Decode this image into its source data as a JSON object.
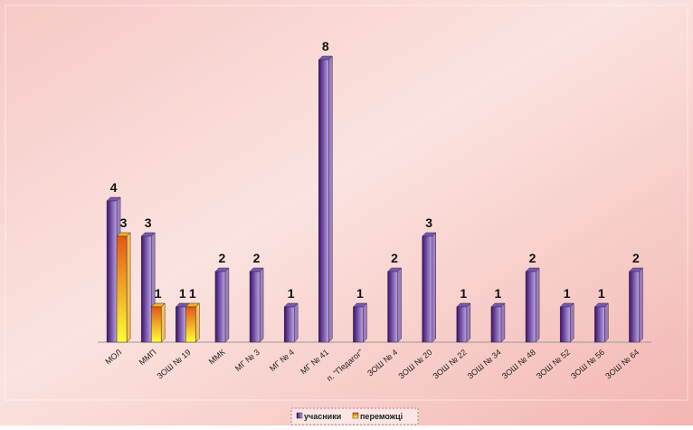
{
  "chart_data": {
    "type": "bar",
    "categories": [
      "МОЛ",
      "ММП",
      "ЗОШ № 19",
      "ММК",
      "МГ № 3",
      "МГ № 4",
      "МГ № 41",
      "п. \"Педагог\"",
      "ЗОШ № 4",
      "ЗОШ № 20",
      "ЗОШ № 22",
      "ЗОШ № 34",
      "ЗОШ № 48",
      "ЗОШ № 52",
      "ЗОШ № 56",
      "ЗОШ № 64"
    ],
    "series": [
      {
        "name": "учасники",
        "color": "#7a55b8",
        "values": [
          4,
          3,
          1,
          2,
          2,
          1,
          8,
          1,
          2,
          3,
          1,
          1,
          2,
          1,
          1,
          2
        ]
      },
      {
        "name": "переможці",
        "color": "#f5b21c",
        "values": [
          3,
          1,
          1,
          null,
          null,
          null,
          null,
          null,
          null,
          null,
          null,
          null,
          null,
          null,
          null,
          null
        ]
      }
    ]
  }
}
